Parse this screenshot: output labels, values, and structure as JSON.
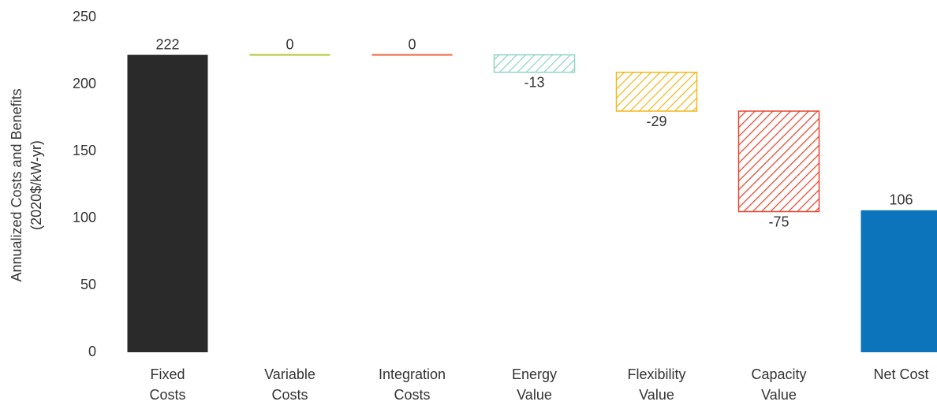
{
  "chart_data": {
    "type": "waterfall",
    "y_label": [
      "Annualized Costs and Benefits",
      "(2020$/kW-yr)"
    ],
    "categories": [
      "Fixed\nCosts",
      "Variable\nCosts",
      "Integration\nCosts",
      "Energy\nValue",
      "Flexibility\nValue",
      "Capacity\nValue",
      "Net Cost"
    ],
    "values": [
      222,
      0,
      0,
      -13,
      -29,
      -75,
      106
    ],
    "measure": [
      "absolute",
      "relative",
      "relative",
      "relative",
      "relative",
      "relative",
      "total"
    ],
    "colors": [
      "#2a2a2a",
      "#b5c93a",
      "#ec6a47",
      "#92d3c3",
      "#f0b81c",
      "#e8452e",
      "#0b74bb"
    ],
    "hatched": [
      false,
      false,
      false,
      true,
      true,
      true,
      false
    ],
    "ylim": [
      0,
      250
    ],
    "yticks": [
      0,
      50,
      100,
      150,
      200,
      250
    ]
  }
}
